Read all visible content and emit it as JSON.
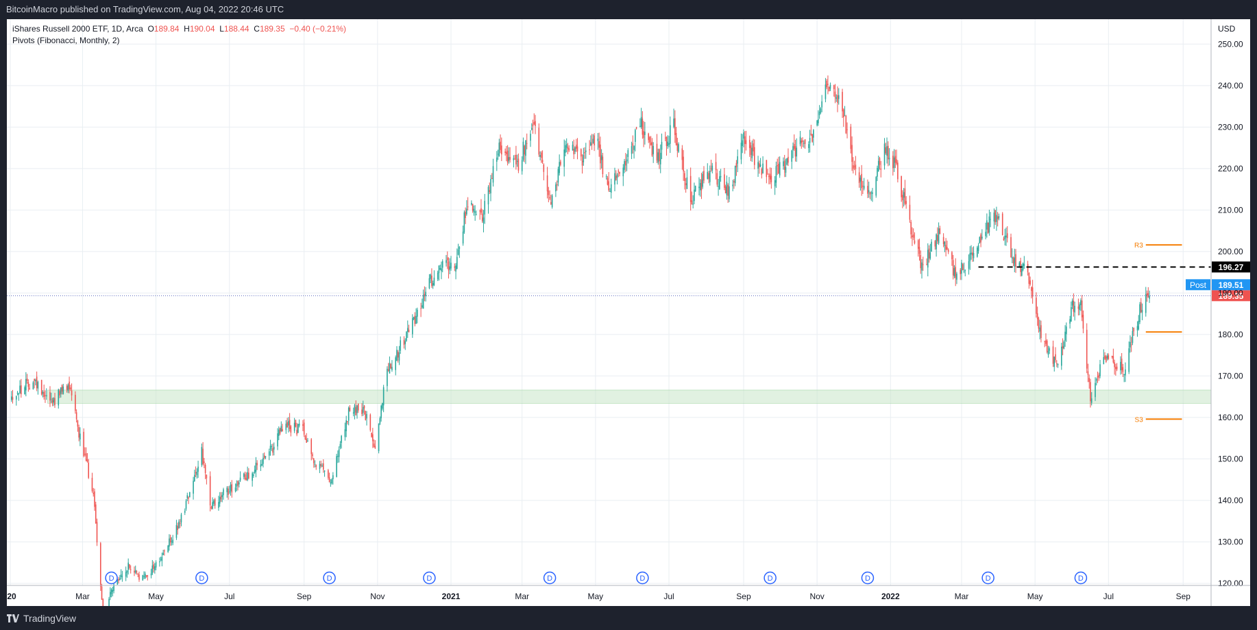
{
  "header": {
    "publisher": "BitcoinMacro published on TradingView.com, Aug 04, 2022 20:46 UTC"
  },
  "legend": {
    "symbol": "iShares Russell 2000 ETF, 1D, Arca",
    "o_label": "O",
    "o": "189.84",
    "h_label": "H",
    "h": "190.04",
    "l_label": "L",
    "l": "188.44",
    "c_label": "C",
    "c": "189.35",
    "change": "−0.40 (−0.21%)",
    "indicator": "Pivots (Fibonacci, Monthly, 2)"
  },
  "footer": {
    "brand": "TradingView"
  },
  "colors": {
    "up": "#26a69a",
    "down": "#ef5350",
    "pivot": "#f57c00",
    "zone": "#c8e6c9",
    "post": "#2196f3",
    "grid": "#e9eef2"
  },
  "chart_data": {
    "type": "candlestick",
    "currency_label": "USD",
    "y_ticks": [
      "120.00",
      "130.00",
      "140.00",
      "150.00",
      "160.00",
      "170.00",
      "180.00",
      "190.00",
      "200.00",
      "210.00",
      "220.00",
      "230.00",
      "240.00",
      "250.00"
    ],
    "ylim": [
      119.5,
      256
    ],
    "x_ticks": [
      {
        "label": "2020",
        "date": "2020-01-01",
        "bold": true
      },
      {
        "label": "Mar",
        "date": "2020-03-01"
      },
      {
        "label": "May",
        "date": "2020-05-01"
      },
      {
        "label": "Jul",
        "date": "2020-07-01"
      },
      {
        "label": "Sep",
        "date": "2020-09-01"
      },
      {
        "label": "Nov",
        "date": "2020-11-01"
      },
      {
        "label": "2021",
        "date": "2021-01-01",
        "bold": true
      },
      {
        "label": "Mar",
        "date": "2021-03-01"
      },
      {
        "label": "May",
        "date": "2021-05-01"
      },
      {
        "label": "Jul",
        "date": "2021-07-01"
      },
      {
        "label": "Sep",
        "date": "2021-09-01"
      },
      {
        "label": "Nov",
        "date": "2021-11-01"
      },
      {
        "label": "2022",
        "date": "2022-01-01",
        "bold": true
      },
      {
        "label": "Mar",
        "date": "2022-03-01"
      },
      {
        "label": "May",
        "date": "2022-05-01"
      },
      {
        "label": "Jul",
        "date": "2022-07-01"
      },
      {
        "label": "Sep",
        "date": "2022-09-01"
      }
    ],
    "x_start_label": "20",
    "price_path": [
      [
        "2020-01-02",
        165
      ],
      [
        "2020-01-20",
        169
      ],
      [
        "2020-02-05",
        164
      ],
      [
        "2020-02-20",
        168
      ],
      [
        "2020-02-28",
        155
      ],
      [
        "2020-03-10",
        142
      ],
      [
        "2020-03-18",
        112
      ],
      [
        "2020-03-25",
        118
      ],
      [
        "2020-04-08",
        124
      ],
      [
        "2020-04-20",
        121
      ],
      [
        "2020-05-05",
        126
      ],
      [
        "2020-05-20",
        134
      ],
      [
        "2020-06-08",
        152
      ],
      [
        "2020-06-15",
        138
      ],
      [
        "2020-06-28",
        142
      ],
      [
        "2020-07-15",
        146
      ],
      [
        "2020-08-01",
        150
      ],
      [
        "2020-08-15",
        158
      ],
      [
        "2020-09-01",
        157
      ],
      [
        "2020-09-10",
        149
      ],
      [
        "2020-09-24",
        145
      ],
      [
        "2020-10-08",
        161
      ],
      [
        "2020-10-20",
        162
      ],
      [
        "2020-10-30",
        153
      ],
      [
        "2020-11-09",
        172
      ],
      [
        "2020-11-20",
        177
      ],
      [
        "2020-12-05",
        186
      ],
      [
        "2020-12-20",
        196
      ],
      [
        "2021-01-05",
        198
      ],
      [
        "2021-01-15",
        212
      ],
      [
        "2021-01-28",
        209
      ],
      [
        "2021-02-10",
        225
      ],
      [
        "2021-02-25",
        220
      ],
      [
        "2021-03-10",
        232
      ],
      [
        "2021-03-24",
        211
      ],
      [
        "2021-04-05",
        225
      ],
      [
        "2021-04-20",
        222
      ],
      [
        "2021-05-01",
        228
      ],
      [
        "2021-05-12",
        214
      ],
      [
        "2021-05-25",
        222
      ],
      [
        "2021-06-08",
        231
      ],
      [
        "2021-06-20",
        222
      ],
      [
        "2021-07-05",
        230
      ],
      [
        "2021-07-15",
        217
      ],
      [
        "2021-07-20",
        213
      ],
      [
        "2021-08-05",
        220
      ],
      [
        "2021-08-20",
        214
      ],
      [
        "2021-09-01",
        227
      ],
      [
        "2021-09-20",
        218
      ],
      [
        "2021-10-01",
        220
      ],
      [
        "2021-10-15",
        225
      ],
      [
        "2021-10-28",
        228
      ],
      [
        "2021-11-08",
        241
      ],
      [
        "2021-11-22",
        234
      ],
      [
        "2021-12-01",
        220
      ],
      [
        "2021-12-14",
        213
      ],
      [
        "2021-12-28",
        225
      ],
      [
        "2022-01-05",
        221
      ],
      [
        "2022-01-14",
        210
      ],
      [
        "2022-01-27",
        196
      ],
      [
        "2022-02-10",
        205
      ],
      [
        "2022-02-24",
        194
      ],
      [
        "2022-03-10",
        200
      ],
      [
        "2022-03-29",
        209
      ],
      [
        "2022-04-12",
        199
      ],
      [
        "2022-04-25",
        194
      ],
      [
        "2022-05-09",
        177
      ],
      [
        "2022-05-20",
        173
      ],
      [
        "2022-06-01",
        187
      ],
      [
        "2022-06-08",
        188
      ],
      [
        "2022-06-16",
        164
      ],
      [
        "2022-06-28",
        175
      ],
      [
        "2022-07-14",
        172
      ],
      [
        "2022-07-28",
        187
      ],
      [
        "2022-08-04",
        189.35
      ]
    ],
    "support_zone": {
      "from": 163.4,
      "to": 166.6,
      "start_date": "2020-02-01"
    },
    "resistance_line": {
      "value": 196.27,
      "label": "196.27",
      "start_date": "2022-03-15"
    },
    "pivots": [
      {
        "label": "R3",
        "value": 201.6
      },
      {
        "label": "",
        "value": 180.6
      },
      {
        "label": "S3",
        "value": 159.6
      }
    ],
    "pivot_range": [
      "2022-08-01",
      "2022-08-31"
    ],
    "last_price": {
      "value": 189.35,
      "label": "189.35"
    },
    "post_price": {
      "value": 189.51,
      "label": "189.51",
      "tag": "Post"
    },
    "dividend_marker": "D",
    "dividends": [
      "2020-03-25",
      "2020-06-08",
      "2020-09-22",
      "2020-12-14",
      "2021-03-24",
      "2021-06-09",
      "2021-09-23",
      "2021-12-13",
      "2022-03-23",
      "2022-06-08"
    ]
  }
}
